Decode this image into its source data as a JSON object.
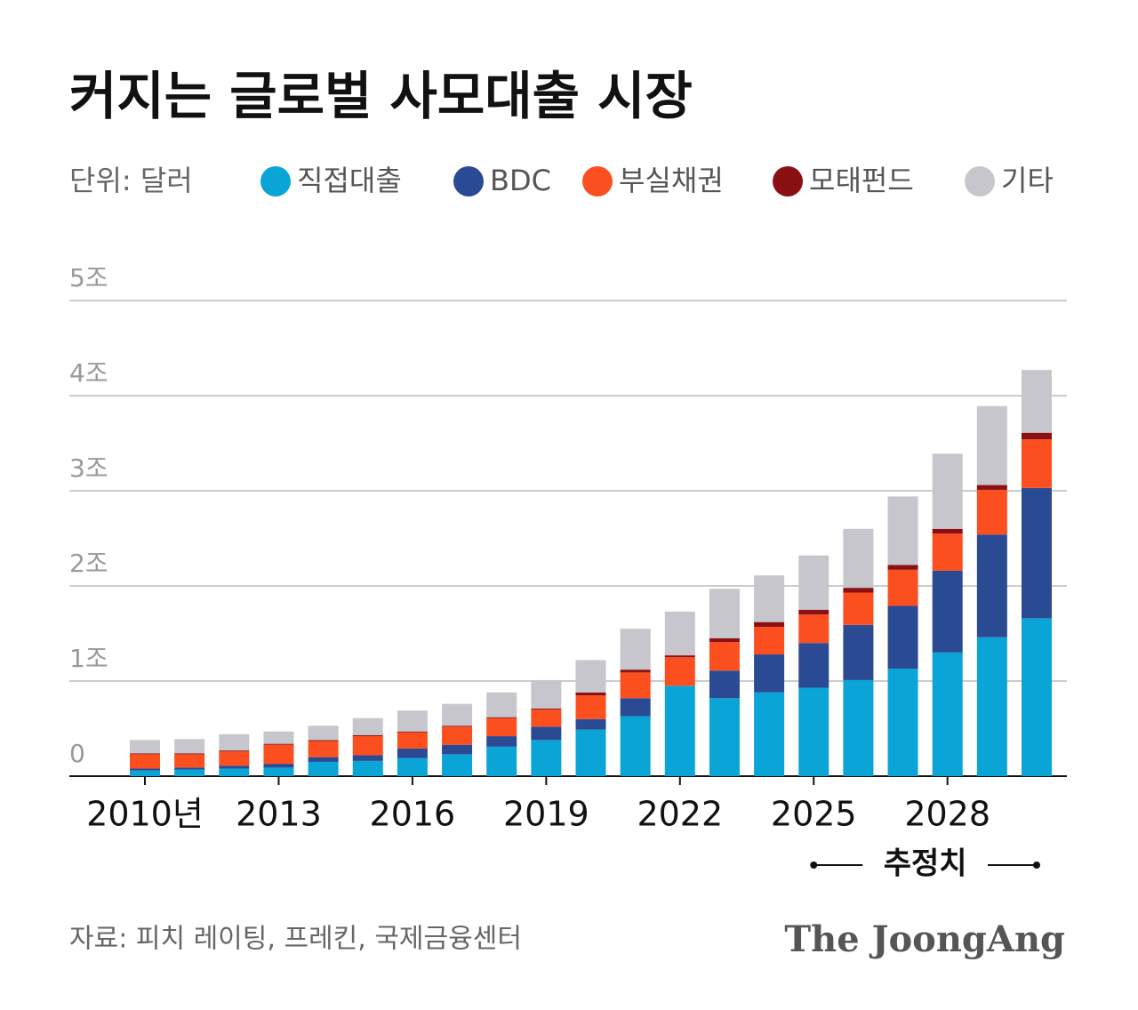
{
  "chart_data": {
    "type": "stacked_bar",
    "title": "커지는 글로벌 사모대출 시장",
    "unit": "단위: 달러",
    "categories": [
      "2010년",
      null,
      null,
      "2013",
      null,
      null,
      "2016",
      null,
      null,
      "2019",
      null,
      null,
      "2022",
      null,
      null,
      "2025",
      null,
      null,
      "2028",
      null,
      null
    ],
    "series": [
      {
        "name": "직접대출",
        "color": "#0ba4d6",
        "values": [
          0.06,
          0.07,
          0.08,
          0.09,
          0.15,
          0.16,
          0.19,
          0.23,
          0.31,
          0.38,
          0.49,
          0.63,
          0.95,
          0.82,
          0.88,
          0.93,
          1.01,
          1.13,
          1.3,
          1.46,
          1.66
        ]
      },
      {
        "name": "BDC",
        "color": "#2b4a94",
        "values": [
          0.02,
          0.02,
          0.03,
          0.04,
          0.05,
          0.06,
          0.1,
          0.1,
          0.11,
          0.14,
          0.11,
          0.19,
          0,
          0.29,
          0.4,
          0.47,
          0.58,
          0.66,
          0.86,
          1.08,
          1.37
        ]
      },
      {
        "name": "부실채권",
        "color": "#fc4f1f",
        "values": [
          0.15,
          0.14,
          0.15,
          0.2,
          0.17,
          0.2,
          0.17,
          0.19,
          0.19,
          0.18,
          0.25,
          0.27,
          0.3,
          0.3,
          0.29,
          0.3,
          0.34,
          0.38,
          0.39,
          0.47,
          0.51
        ]
      },
      {
        "name": "모태펀드",
        "color": "#8b1014",
        "values": [
          0.01,
          0.01,
          0.01,
          0.01,
          0.01,
          0.01,
          0.01,
          0.01,
          0.01,
          0.01,
          0.03,
          0.03,
          0.02,
          0.04,
          0.05,
          0.05,
          0.05,
          0.05,
          0.05,
          0.05,
          0.07
        ]
      },
      {
        "name": "기타",
        "color": "#c6c6cc",
        "values": [
          0.14,
          0.15,
          0.17,
          0.13,
          0.15,
          0.18,
          0.22,
          0.23,
          0.26,
          0.3,
          0.34,
          0.43,
          0.46,
          0.52,
          0.49,
          0.57,
          0.62,
          0.72,
          0.79,
          0.83,
          0.66
        ]
      }
    ],
    "ylim": [
      0,
      5
    ],
    "yticks": [
      0,
      {
        "value": 1,
        "label": "1조"
      },
      {
        "value": 2,
        "label": "2조"
      },
      {
        "value": 3,
        "label": "3조"
      },
      {
        "value": 4,
        "label": "4조"
      },
      {
        "value": 5,
        "label": "5조"
      }
    ],
    "grid": true,
    "annotation": "추정치",
    "source": "자료: 피치 레이팅, 프레킨, 국제금융센터",
    "brand": "The JoongAng"
  }
}
